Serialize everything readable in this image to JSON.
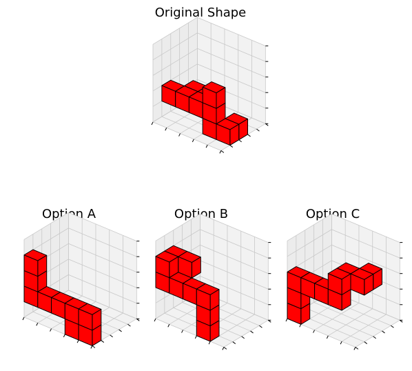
{
  "panels": {
    "original": {
      "title": "Original Shape"
    },
    "a": {
      "title": "Option A"
    },
    "b": {
      "title": "Option B"
    },
    "c": {
      "title": "Option C"
    }
  },
  "colors": {
    "cube_face": "#ff0000",
    "cube_edge": "#000000",
    "pane_fill": "#f2f2f2",
    "grid": "#c8c8c8"
  }
}
